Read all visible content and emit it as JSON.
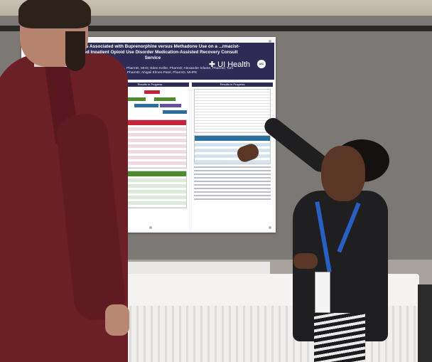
{
  "poster": {
    "title": "...t Factors Associated with Buprenorphine versus Methadone Use on a ...rmacist-Integrated Inpatient Opioid Use Disorder Medication-Assisted Recovery Consult Service",
    "authors": "...Coffee, PharmD; Paul Strenges, PharmD, MHS; Eden Keller, PharmD; Alexander Infante, PharmD; Toni Martinford, PharmD; Layla Rashid, PharmD; Abigail Elmes-Patel, PharmD, MHPE",
    "logo_text": "UI Health",
    "logo_badge": "UIC",
    "section_results_1": "Results in Progress",
    "section_results_2": "Results in Progress"
  },
  "colors": {
    "header": "#2e2c56",
    "table_red": "#c5253b",
    "table_green": "#4b8b2d",
    "table_blue": "#2c6f9e",
    "jacket_man": "#6b1f27",
    "lanyard": "#2a5fc2"
  }
}
